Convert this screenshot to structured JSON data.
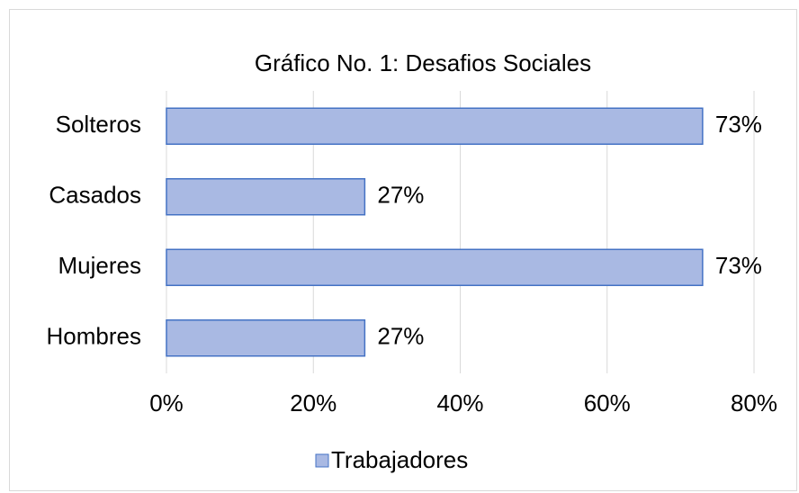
{
  "chart_data": {
    "type": "bar",
    "orientation": "horizontal",
    "title": "Gráfico No. 1: Desafios Sociales",
    "categories": [
      "Solteros",
      "Casados",
      "Mujeres",
      "Hombres"
    ],
    "series": [
      {
        "name": "Trabajadores",
        "color": "#a9b9e3",
        "values": [
          73,
          27,
          73,
          27
        ],
        "value_labels": [
          "73%",
          "27%",
          "73%",
          "27%"
        ]
      }
    ],
    "xlim": [
      0,
      80
    ],
    "xticks": [
      {
        "value": 0,
        "label": "0%"
      },
      {
        "value": 20,
        "label": "20%"
      },
      {
        "value": 40,
        "label": "40%"
      },
      {
        "value": 60,
        "label": "60%"
      },
      {
        "value": 80,
        "label": "80%"
      }
    ],
    "grid": true,
    "legend": "bottom"
  }
}
